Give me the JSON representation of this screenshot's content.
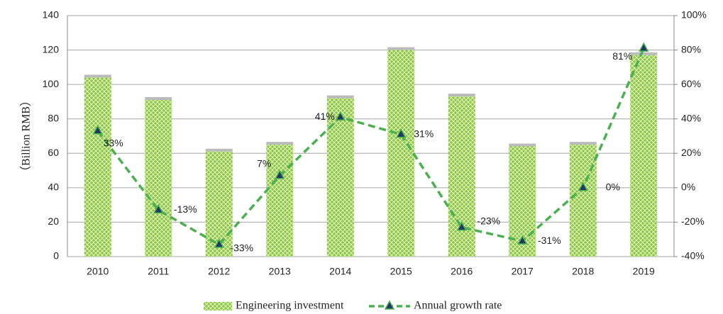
{
  "chart_data": {
    "type": "bar_line",
    "categories": [
      "2010",
      "2011",
      "2012",
      "2013",
      "2014",
      "2015",
      "2016",
      "2017",
      "2018",
      "2019"
    ],
    "y_label": "（Billion RMB）",
    "ylim": [
      0,
      140
    ],
    "yticks": [
      0,
      20,
      40,
      60,
      80,
      100,
      120,
      140
    ],
    "y2lim": [
      -40,
      100
    ],
    "y2ticks": [
      {
        "value": -40,
        "label": "-40%"
      },
      {
        "value": -20,
        "label": "-20%"
      },
      {
        "value": 0,
        "label": "0%"
      },
      {
        "value": 20,
        "label": "20%"
      },
      {
        "value": 40,
        "label": "40%"
      },
      {
        "value": 60,
        "label": "60%"
      },
      {
        "value": 80,
        "label": "80%"
      },
      {
        "value": 100,
        "label": "100%"
      }
    ],
    "grid": true,
    "series": [
      {
        "name": "Engineering investment",
        "type": "bar",
        "color": "#8cc63f",
        "values": [
          104,
          91,
          61,
          65,
          92,
          120,
          93,
          64,
          65,
          117
        ]
      },
      {
        "name": "Annual growth rate",
        "type": "line",
        "axis": "y2",
        "color": "#4cb050",
        "marker_color": "#1f3864",
        "values": [
          33,
          -13,
          -33,
          7,
          41,
          31,
          -23,
          -31,
          0,
          81
        ],
        "value_labels": [
          "33%",
          "-13%",
          "-33%",
          "7%",
          "41%",
          "31%",
          "-23%",
          "-31%",
          "0%",
          "81%"
        ]
      }
    ],
    "legend": "bottom"
  }
}
